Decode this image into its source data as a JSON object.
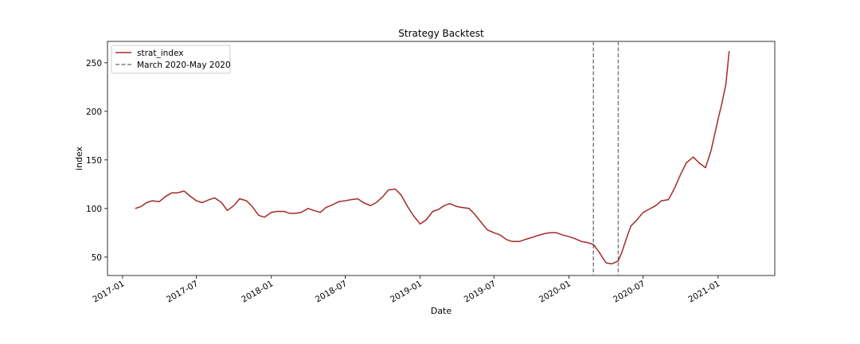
{
  "chart_data": {
    "type": "line",
    "title": "Strategy Backtest",
    "xlabel": "Date",
    "ylabel": "index",
    "xlim": [
      "2016-11-25",
      "2021-05-20"
    ],
    "ylim": [
      31,
      272
    ],
    "x_ticks": [
      "2017-01",
      "2017-07",
      "2018-01",
      "2018-07",
      "2019-01",
      "2019-07",
      "2020-01",
      "2020-07",
      "2021-01"
    ],
    "y_ticks": [
      50,
      100,
      150,
      200,
      250
    ],
    "grid": false,
    "legend_position": "top-left",
    "series": [
      {
        "name": "strat_index",
        "color": "#a52a2a",
        "points": [
          [
            "2017-02-01",
            100
          ],
          [
            "2017-02-15",
            102
          ],
          [
            "2017-03-01",
            106
          ],
          [
            "2017-03-15",
            108
          ],
          [
            "2017-04-01",
            107
          ],
          [
            "2017-04-15",
            112
          ],
          [
            "2017-05-01",
            116
          ],
          [
            "2017-05-15",
            116
          ],
          [
            "2017-06-01",
            118
          ],
          [
            "2017-06-15",
            113
          ],
          [
            "2017-07-01",
            108
          ],
          [
            "2017-07-15",
            106
          ],
          [
            "2017-08-01",
            109
          ],
          [
            "2017-08-15",
            111
          ],
          [
            "2017-09-01",
            106
          ],
          [
            "2017-09-15",
            98
          ],
          [
            "2017-10-01",
            103
          ],
          [
            "2017-10-15",
            110
          ],
          [
            "2017-11-01",
            108
          ],
          [
            "2017-11-15",
            102
          ],
          [
            "2017-12-01",
            93
          ],
          [
            "2017-12-15",
            91
          ],
          [
            "2018-01-01",
            96
          ],
          [
            "2018-01-15",
            97
          ],
          [
            "2018-02-01",
            97
          ],
          [
            "2018-02-15",
            95
          ],
          [
            "2018-03-01",
            95
          ],
          [
            "2018-03-15",
            96
          ],
          [
            "2018-04-01",
            100
          ],
          [
            "2018-04-15",
            98
          ],
          [
            "2018-05-01",
            96
          ],
          [
            "2018-05-15",
            101
          ],
          [
            "2018-06-01",
            104
          ],
          [
            "2018-06-15",
            107
          ],
          [
            "2018-07-01",
            108
          ],
          [
            "2018-07-15",
            109
          ],
          [
            "2018-08-01",
            110
          ],
          [
            "2018-08-15",
            106
          ],
          [
            "2018-09-01",
            103
          ],
          [
            "2018-09-15",
            106
          ],
          [
            "2018-10-01",
            112
          ],
          [
            "2018-10-15",
            119
          ],
          [
            "2018-11-01",
            120
          ],
          [
            "2018-11-15",
            114
          ],
          [
            "2018-12-01",
            102
          ],
          [
            "2018-12-15",
            93
          ],
          [
            "2019-01-01",
            84
          ],
          [
            "2019-01-15",
            88
          ],
          [
            "2019-02-01",
            97
          ],
          [
            "2019-02-15",
            99
          ],
          [
            "2019-03-01",
            103
          ],
          [
            "2019-03-15",
            105
          ],
          [
            "2019-04-01",
            102
          ],
          [
            "2019-04-15",
            101
          ],
          [
            "2019-05-01",
            100
          ],
          [
            "2019-05-15",
            94
          ],
          [
            "2019-06-01",
            85
          ],
          [
            "2019-06-15",
            78
          ],
          [
            "2019-07-01",
            75
          ],
          [
            "2019-07-15",
            73
          ],
          [
            "2019-08-01",
            68
          ],
          [
            "2019-08-15",
            66
          ],
          [
            "2019-09-01",
            66
          ],
          [
            "2019-09-15",
            68
          ],
          [
            "2019-10-01",
            70
          ],
          [
            "2019-10-15",
            72
          ],
          [
            "2019-11-01",
            74
          ],
          [
            "2019-11-15",
            75
          ],
          [
            "2019-12-01",
            75
          ],
          [
            "2019-12-15",
            73
          ],
          [
            "2020-01-01",
            71
          ],
          [
            "2020-01-15",
            69
          ],
          [
            "2020-02-01",
            66
          ],
          [
            "2020-02-15",
            65
          ],
          [
            "2020-03-01",
            63
          ],
          [
            "2020-03-15",
            55
          ],
          [
            "2020-04-01",
            44
          ],
          [
            "2020-04-15",
            43
          ],
          [
            "2020-05-01",
            46
          ],
          [
            "2020-05-10",
            55
          ],
          [
            "2020-05-20",
            68
          ],
          [
            "2020-06-01",
            82
          ],
          [
            "2020-06-15",
            88
          ],
          [
            "2020-07-01",
            96
          ],
          [
            "2020-07-15",
            99
          ],
          [
            "2020-08-01",
            103
          ],
          [
            "2020-08-15",
            108
          ],
          [
            "2020-09-01",
            109
          ],
          [
            "2020-09-15",
            120
          ],
          [
            "2020-10-01",
            135
          ],
          [
            "2020-10-15",
            147
          ],
          [
            "2020-11-01",
            153
          ],
          [
            "2020-11-15",
            147
          ],
          [
            "2020-12-01",
            142
          ],
          [
            "2020-12-15",
            160
          ],
          [
            "2021-01-01",
            192
          ],
          [
            "2021-01-10",
            208
          ],
          [
            "2021-01-20",
            228
          ],
          [
            "2021-01-28",
            262
          ]
        ]
      }
    ],
    "vlines": [
      {
        "name": "March 2020-May 2020",
        "x": [
          "2020-03-01",
          "2020-05-01"
        ],
        "color": "#808080",
        "style": "dashed"
      }
    ]
  }
}
